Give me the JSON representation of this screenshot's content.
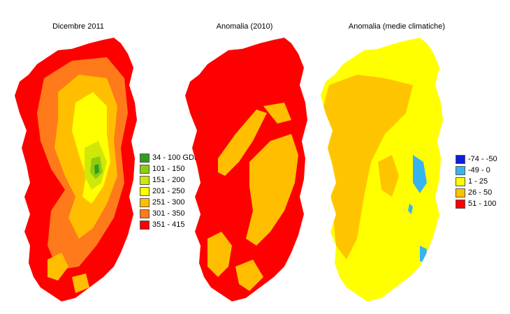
{
  "colors": {
    "c1": "#2f9e1e",
    "c2": "#8fcc10",
    "c3": "#cfe80a",
    "c4": "#ffff00",
    "c5": "#ffbf00",
    "c6": "#ff7a1a",
    "c7": "#ff0000",
    "a1": "#0a1ee0",
    "a2": "#37b4ef",
    "a3": "#ffff00",
    "a4": "#ffc400",
    "a5": "#ff0000"
  },
  "panels": [
    {
      "title": "Dicembre 2011"
    },
    {
      "title": "Anomalia (2010)"
    },
    {
      "title": "Anomalia (medie climatiche)"
    }
  ],
  "legend_gdd": [
    {
      "label": "34 - 100 GDD",
      "color": "#2f9e1e"
    },
    {
      "label": "101 - 150",
      "color": "#8fcc10"
    },
    {
      "label": "151 - 200",
      "color": "#cfe80a"
    },
    {
      "label": "201 - 250",
      "color": "#ffff00"
    },
    {
      "label": "251 - 300",
      "color": "#ffbf00"
    },
    {
      "label": "301 - 350",
      "color": "#ff7a1a"
    },
    {
      "label": "351 - 415",
      "color": "#ff0000"
    }
  ],
  "legend_anomaly": [
    {
      "label": "-74 - -50",
      "color": "#0a1ee0"
    },
    {
      "label": "-49 - 0",
      "color": "#37b4ef"
    },
    {
      "label": "1 - 25",
      "color": "#ffff00"
    },
    {
      "label": "26 - 50",
      "color": "#ffc400"
    },
    {
      "label": "51 - 100",
      "color": "#ff0000"
    }
  ]
}
